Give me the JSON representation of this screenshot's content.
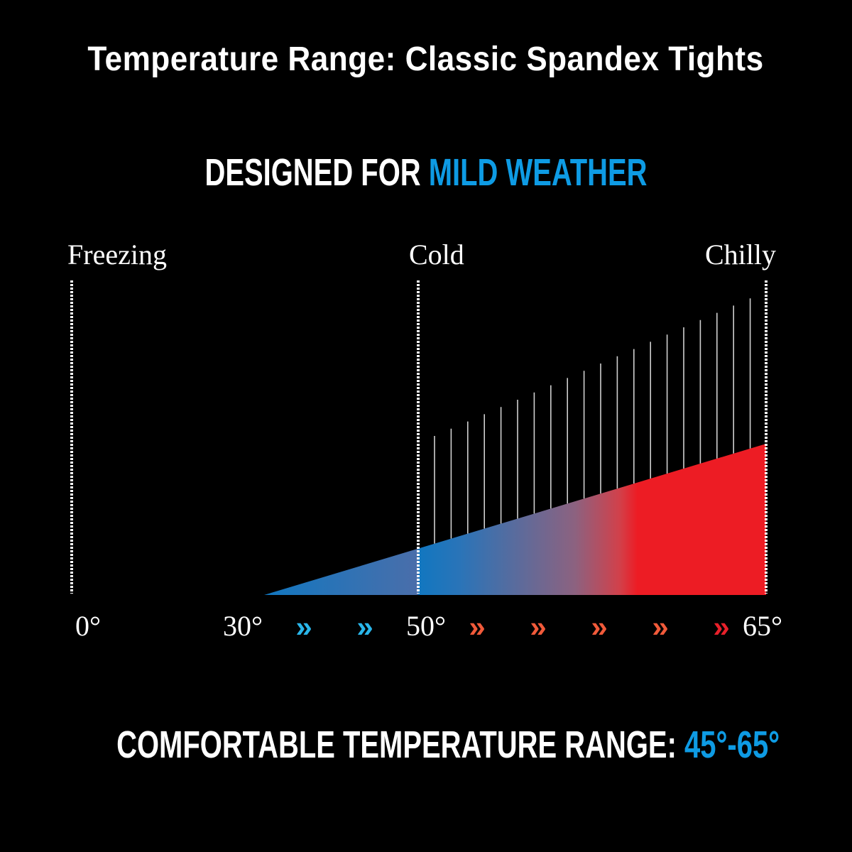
{
  "title": "Temperature Range: Classic Spandex Tights",
  "headline": {
    "prefix": "DESIGNED FOR ",
    "highlight": "MILD WEATHER"
  },
  "bottom": {
    "prefix": "COMFORTABLE TEMPERATURE RANGE: ",
    "highlight": "45°-65°"
  },
  "colors": {
    "accent_blue": "#0e9be4",
    "fill_blue": "#1177c0",
    "fill_red": "#ed1c24",
    "chevron_blue": "#29b6ea",
    "chevron_orange": "#f15a3a",
    "chevron_red": "#e8202a"
  },
  "chart_data": {
    "type": "area",
    "title": "Temperature Range: Classic Spandex Tights",
    "zones": [
      {
        "label": "Freezing",
        "temperature": 0
      },
      {
        "label": "Cold",
        "temperature": 50
      },
      {
        "label": "Chilly",
        "temperature": 65
      }
    ],
    "x_tick_labels": [
      "0°",
      "30°",
      "50°",
      "65°"
    ],
    "area_start": 30,
    "area_end": 65,
    "comfortable_range": [
      45,
      65
    ],
    "gradient": "blue to red",
    "chevrons": [
      {
        "symbol": "»",
        "color": "blue"
      },
      {
        "symbol": "»",
        "color": "blue"
      },
      {
        "symbol": "»",
        "color": "orange"
      },
      {
        "symbol": "»",
        "color": "orange"
      },
      {
        "symbol": "»",
        "color": "orange"
      },
      {
        "symbol": "»",
        "color": "orange"
      },
      {
        "symbol": "»",
        "color": "red"
      }
    ]
  }
}
